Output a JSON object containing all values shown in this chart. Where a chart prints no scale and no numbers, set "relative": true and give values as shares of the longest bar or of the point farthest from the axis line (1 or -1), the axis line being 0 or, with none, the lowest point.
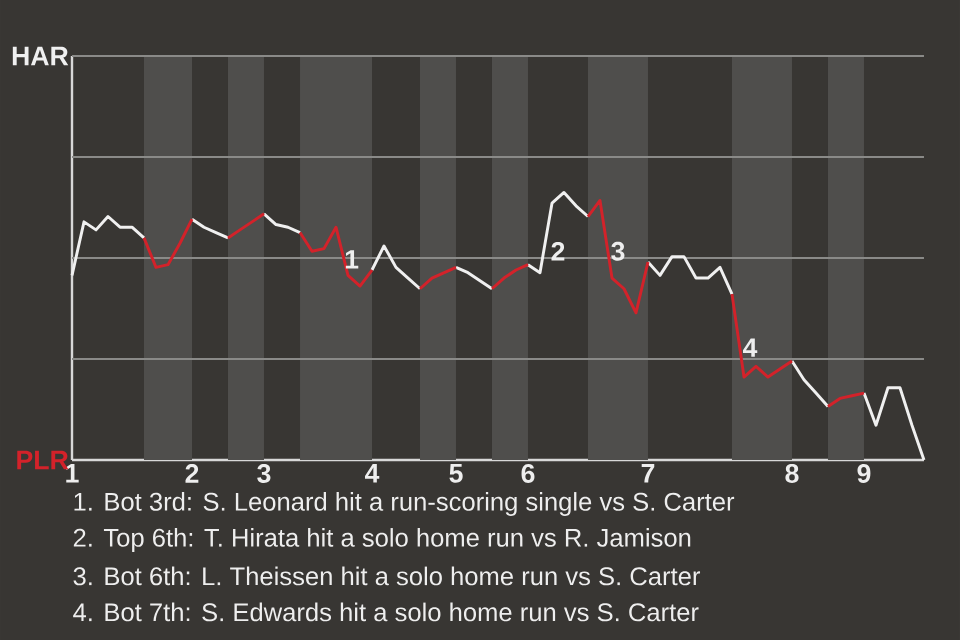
{
  "chart_data": {
    "type": "line",
    "relative": true,
    "categories": [
      "1",
      null,
      null,
      null,
      null,
      null,
      null,
      null,
      null,
      null,
      "2",
      null,
      null,
      null,
      null,
      null,
      "3",
      null,
      null,
      null,
      null,
      null,
      null,
      null,
      null,
      "4",
      null,
      null,
      null,
      null,
      null,
      null,
      "5",
      null,
      null,
      null,
      null,
      null,
      "6",
      null,
      null,
      null,
      null,
      null,
      null,
      null,
      null,
      null,
      "7",
      null,
      null,
      null,
      null,
      null,
      null,
      null,
      null,
      null,
      null,
      null,
      "8",
      null,
      null,
      null,
      null,
      null,
      "9",
      null,
      null,
      null,
      null,
      null
    ],
    "series": [
      {
        "color": "#f0f0f0",
        "values": [
          0.69,
          0.89,
          0.86,
          0.91,
          0.87,
          0.87,
          0.83,
          null,
          null,
          null,
          0.9,
          0.87,
          0.85,
          0.83,
          null,
          null,
          0.92,
          0.88,
          0.87,
          0.85,
          null,
          null,
          null,
          null,
          null,
          0.71,
          0.8,
          0.72,
          0.68,
          0.64,
          null,
          null,
          0.72,
          0.7,
          0.67,
          0.64,
          null,
          null,
          0.73,
          0.7,
          0.96,
          1,
          0.95,
          0.91,
          null,
          null,
          null,
          null,
          0.74,
          0.69,
          0.76,
          0.76,
          0.68,
          0.68,
          0.72,
          0.62,
          null,
          null,
          null,
          null,
          0.37,
          0.3,
          0.25,
          0.2,
          null,
          null,
          0.25,
          0.13,
          0.27,
          0.27,
          0.13,
          0
        ]
      },
      {
        "color": "#d3222a",
        "values": [
          null,
          null,
          null,
          null,
          null,
          null,
          0.83,
          0.72,
          0.73,
          0.81,
          0.9,
          null,
          null,
          0.83,
          0.86,
          0.89,
          0.92,
          null,
          null,
          0.85,
          0.78,
          0.79,
          0.87,
          0.69,
          0.65,
          0.71,
          null,
          null,
          null,
          0.64,
          0.68,
          0.7,
          0.72,
          null,
          null,
          0.64,
          0.68,
          0.71,
          0.73,
          null,
          null,
          null,
          null,
          0.91,
          0.97,
          0.68,
          0.64,
          0.55,
          0.74,
          null,
          null,
          null,
          null,
          null,
          null,
          0.62,
          0.31,
          0.35,
          0.31,
          0.34,
          0.37,
          null,
          null,
          0.2,
          0.23,
          0.24,
          0.25,
          null,
          null,
          null,
          null,
          null
        ]
      }
    ],
    "ref_lines": [
      {
        "axis": "y",
        "value": 0.3775,
        "color": "#8a8a88"
      },
      {
        "axis": "y",
        "value": 0.755,
        "color": "#8a8a88"
      },
      {
        "axis": "y",
        "value": 1.1325,
        "color": "#8a8a88"
      },
      {
        "axis": "y",
        "value": 1.51,
        "color": "#8a8a88"
      }
    ],
    "marker": "none",
    "line_style": "solid",
    "annotations": [
      "HAR",
      "PLR",
      "1",
      "2",
      "3",
      "4",
      "1. Bot 3rd: S. Leonard hit a run-scoring single vs S. Carter",
      "2. Top 6th: T. Hirata hit a solo home run vs R. Jamison",
      "3. Bot 6th: L. Theissen hit a solo home run vs S. Carter",
      "4. Bot 7th: S. Edwards hit a solo home run vs S. Carter"
    ]
  }
}
